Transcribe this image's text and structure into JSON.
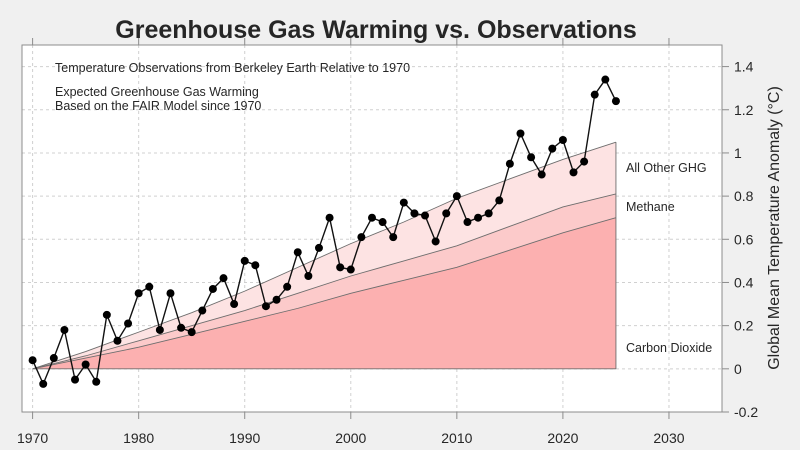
{
  "chart_data": {
    "type": "area",
    "title": "Greenhouse Gas Warming vs. Observations",
    "ylabel": "Global Mean Temperature Anomaly (°C)",
    "xlabel": "",
    "xlim": [
      1969,
      2035
    ],
    "ylim": [
      -0.2,
      1.5
    ],
    "x_ticks": [
      1970,
      1980,
      1990,
      2000,
      2010,
      2020,
      2030
    ],
    "y_ticks": [
      -0.2,
      0,
      0.2,
      0.4,
      0.6,
      0.8,
      1,
      1.2,
      1.4
    ],
    "y_tick_labels": [
      "-0.2",
      "0",
      "0.2",
      "0.4",
      "0.6",
      "0.8",
      "1",
      "1.2",
      "1.4"
    ],
    "y_axis_side": "right",
    "grid": true,
    "annotations": [
      "Temperature Observations from Berkeley Earth Relative to 1970",
      "Expected Greenhouse Gas Warming",
      "Based on the FAIR Model since 1970"
    ],
    "stacked_areas": {
      "x": [
        1970,
        1975,
        1980,
        1985,
        1990,
        1995,
        2000,
        2005,
        2010,
        2015,
        2020,
        2025
      ],
      "layers": [
        {
          "name": "Carbon Dioxide",
          "color": "#fcb0b0",
          "cumulative": [
            0,
            0.05,
            0.1,
            0.16,
            0.22,
            0.28,
            0.35,
            0.41,
            0.47,
            0.55,
            0.63,
            0.7
          ]
        },
        {
          "name": "Methane",
          "color": "#fccaca",
          "cumulative": [
            0,
            0.06,
            0.13,
            0.2,
            0.27,
            0.35,
            0.43,
            0.5,
            0.57,
            0.66,
            0.75,
            0.81
          ]
        },
        {
          "name": "All Other GHG",
          "color": "#fde3e3",
          "cumulative": [
            0,
            0.08,
            0.17,
            0.26,
            0.36,
            0.47,
            0.58,
            0.68,
            0.79,
            0.88,
            0.97,
            1.05
          ]
        }
      ]
    },
    "observations": {
      "x": [
        1970,
        1971,
        1972,
        1973,
        1974,
        1975,
        1976,
        1977,
        1978,
        1979,
        1980,
        1981,
        1982,
        1983,
        1984,
        1985,
        1986,
        1987,
        1988,
        1989,
        1990,
        1991,
        1992,
        1993,
        1994,
        1995,
        1996,
        1997,
        1998,
        1999,
        2000,
        2001,
        2002,
        2003,
        2004,
        2005,
        2006,
        2007,
        2008,
        2009,
        2010,
        2011,
        2012,
        2013,
        2014,
        2015,
        2016,
        2017,
        2018,
        2019,
        2020,
        2021,
        2022,
        2023,
        2024,
        2025
      ],
      "y": [
        0.04,
        -0.07,
        0.05,
        0.18,
        -0.05,
        0.02,
        -0.06,
        0.25,
        0.13,
        0.21,
        0.35,
        0.38,
        0.18,
        0.35,
        0.19,
        0.17,
        0.27,
        0.37,
        0.42,
        0.3,
        0.5,
        0.48,
        0.29,
        0.32,
        0.38,
        0.54,
        0.43,
        0.56,
        0.7,
        0.47,
        0.46,
        0.61,
        0.7,
        0.68,
        0.61,
        0.77,
        0.72,
        0.71,
        0.59,
        0.72,
        0.8,
        0.68,
        0.7,
        0.72,
        0.78,
        0.95,
        1.09,
        0.98,
        0.9,
        1.02,
        1.06,
        0.91,
        0.96,
        1.27,
        1.34,
        1.24
      ],
      "color": "#000000"
    }
  }
}
